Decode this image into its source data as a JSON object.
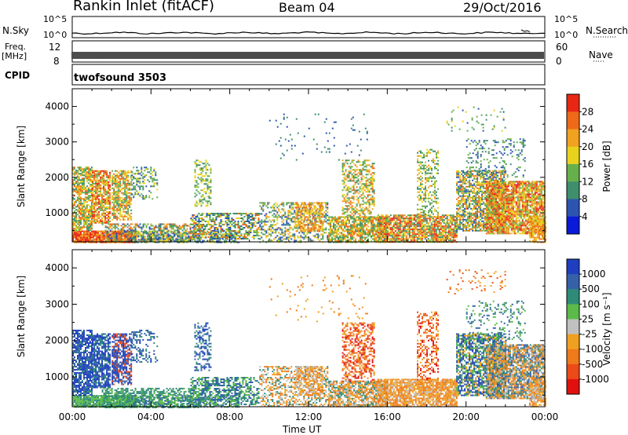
{
  "header": {
    "site": "Rankin Inlet (fitACF)",
    "beam": "Beam 04",
    "date": "29/Oct/2016"
  },
  "strip": {
    "nsky_label": "N.Sky",
    "nsky_ticks": [
      "10^5",
      "10^0"
    ],
    "nsearch_label": "N.Search",
    "nsearch_ticks": [
      "10^5",
      "10^0"
    ],
    "freq_label_1": "Freq.",
    "freq_label_2": "[MHz]",
    "freq_ticks": [
      "12",
      "8"
    ],
    "nave_label": "Nave",
    "nave_ticks": [
      "60",
      "0"
    ],
    "cpid_label": "CPID",
    "cpid_value": "twofsound 3503"
  },
  "chart_data": [
    {
      "type": "heatmap",
      "name": "power-panel",
      "ylabel": "Slant Range [km]",
      "yticks": [
        "1000",
        "2000",
        "3000",
        "4000"
      ],
      "ylim": [
        180,
        4500
      ],
      "colorbar_label": "Power [dB]",
      "colorbar_ticks": [
        "4",
        "8",
        "12",
        "16",
        "20",
        "24",
        "28"
      ],
      "colorbar_colors": [
        "#0a1ad8",
        "#2c55b2",
        "#3f8f6d",
        "#66b04c",
        "#e8d21d",
        "#f0a220",
        "#ee6918",
        "#e82715"
      ]
    },
    {
      "type": "heatmap",
      "name": "velocity-panel",
      "ylabel": "Slant Range [km]",
      "yticks": [
        "1000",
        "2000",
        "3000",
        "4000"
      ],
      "ylim": [
        180,
        4500
      ],
      "xlabel": "Time UT",
      "xticks": [
        "00:00",
        "04:00",
        "08:00",
        "12:00",
        "16:00",
        "20:00",
        "00:00"
      ],
      "colorbar_label": "Velocity [m s⁻¹]",
      "colorbar_ticks": [
        "1000",
        "500",
        "100",
        "25",
        "-25",
        "-100",
        "-500",
        "-1000"
      ],
      "colorbar_colors": [
        "#1f3fbf",
        "#3461a8",
        "#2f8b78",
        "#5cba4a",
        "#c0c0c0",
        "#f0a020",
        "#ee7a1a",
        "#ec4a18",
        "#e01010"
      ]
    }
  ]
}
